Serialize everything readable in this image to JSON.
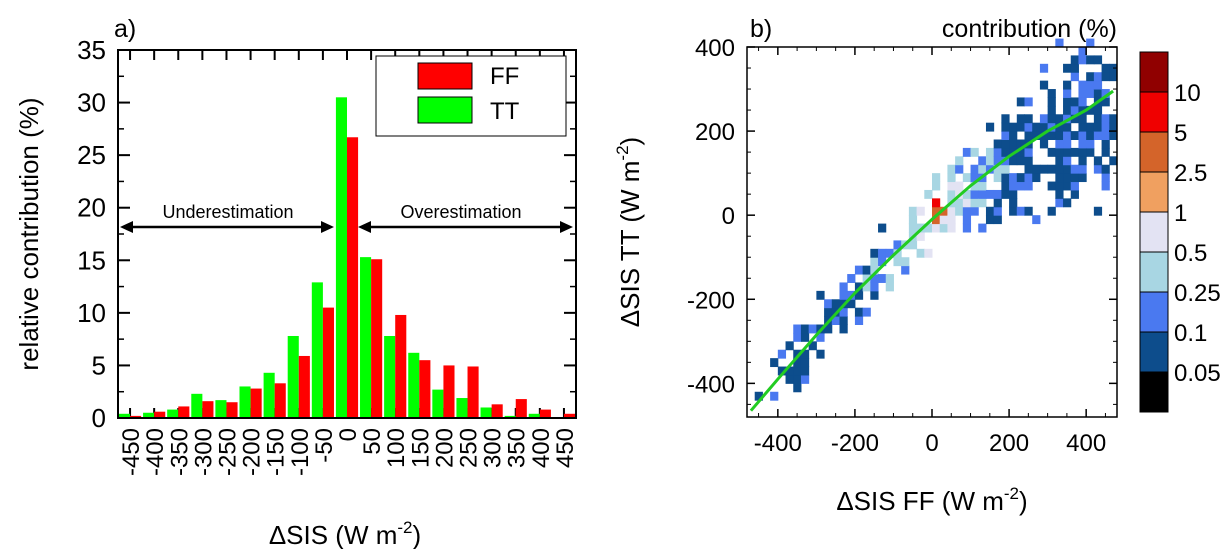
{
  "chart_data": [
    {
      "panel_label": "a)",
      "type": "bar",
      "xlabel_main": "ΔSIS (W m",
      "xlabel_sup": "-2",
      "xlabel_close": ")",
      "ylabel": "relative contribution (%)",
      "ylim": [
        0,
        35
      ],
      "yticks": [
        "0",
        "5",
        "10",
        "15",
        "20",
        "25",
        "30",
        "35"
      ],
      "categories": [
        "-450",
        "-400",
        "-350",
        "-300",
        "-250",
        "-200",
        "-150",
        "-100",
        "-50",
        "0",
        "50",
        "100",
        "150",
        "200",
        "250",
        "300",
        "350",
        "400",
        "450"
      ],
      "series": [
        {
          "name": "TT",
          "color": "#00ff00",
          "values": [
            0.4,
            0.5,
            0.8,
            2.3,
            1.7,
            3.0,
            4.3,
            7.8,
            12.9,
            30.5,
            15.3,
            7.8,
            6.2,
            2.7,
            1.9,
            1.0,
            0.2,
            0.4,
            0.0
          ]
        },
        {
          "name": "FF",
          "color": "#ff0000",
          "values": [
            0.2,
            0.6,
            1.1,
            1.6,
            1.5,
            2.8,
            3.3,
            5.9,
            10.5,
            26.7,
            15.1,
            9.8,
            5.5,
            5.0,
            4.9,
            1.3,
            1.8,
            0.8,
            0.4
          ]
        }
      ],
      "legend": [
        "FF",
        "TT"
      ],
      "legend_position": "top-right",
      "annotations": {
        "left": "Underestimation",
        "right": "Overestimation"
      }
    },
    {
      "panel_label": "b)",
      "type": "heatmap",
      "title_right": "contribution (%)",
      "xlabel_main": "ΔSIS FF (W m",
      "xlabel_sup": "-2",
      "xlabel_close": ")",
      "ylabel_main": "ΔSIS TT (W m",
      "ylabel_sup": "-2",
      "ylabel_close": ")",
      "xlim": [
        -480,
        480
      ],
      "ylim": [
        -480,
        400
      ],
      "xticks": [
        "-400",
        "-200",
        "0",
        "200",
        "400"
      ],
      "yticks": [
        "-400",
        "-200",
        "0",
        "200",
        "400"
      ],
      "colorbar": {
        "labels": [
          "0.05",
          "0.1",
          "0.25",
          "0.5",
          "1",
          "2.5",
          "5",
          "10"
        ],
        "colors": [
          "#000000",
          "#0d4d8c",
          "#4a79f0",
          "#a8d6e3",
          "#e3e3f3",
          "#f0a060",
          "#d4642a",
          "#f00000",
          "#900000"
        ]
      },
      "fit_line": {
        "color": "#22cc22",
        "x": [
          -470,
          -400,
          -300,
          -200,
          -100,
          0,
          100,
          200,
          300,
          400,
          470
        ],
        "y": [
          -465,
          -390,
          -285,
          -185,
          -95,
          -10,
          70,
          140,
          200,
          250,
          295
        ]
      }
    }
  ]
}
